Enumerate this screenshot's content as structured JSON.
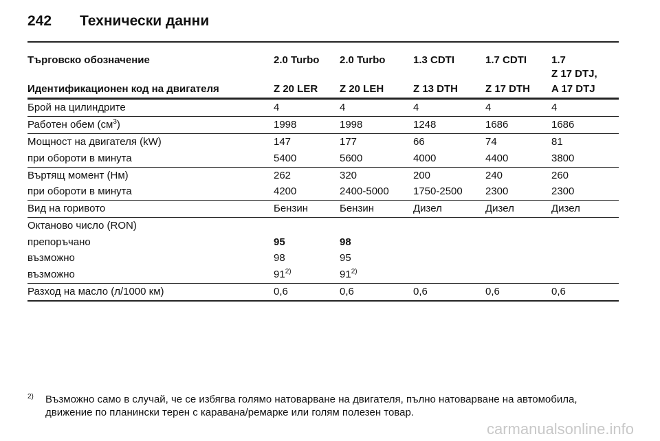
{
  "header": {
    "page_number": "242",
    "title": "Технически данни"
  },
  "table": {
    "trade_label": "Търговско обозначение",
    "trade_names": [
      "2.0 Turbo",
      "2.0 Turbo",
      "1.3 CDTI",
      "1.7 CDTI",
      "1.7"
    ],
    "code_label": "Идентификационен код на двигателя",
    "codes": [
      [
        "Z 20 LER"
      ],
      [
        "Z 20 LEH"
      ],
      [
        "Z 13 DTH"
      ],
      [
        "Z 17 DTH"
      ],
      [
        "Z 17 DTJ,",
        "A 17 DTJ"
      ]
    ],
    "groups": [
      {
        "lines": [
          {
            "label": "Брой на цилиндрите",
            "values": [
              "4",
              "4",
              "4",
              "4",
              "4"
            ]
          }
        ]
      },
      {
        "lines": [
          {
            "label": {
              "text": "Работен обем (см",
              "sup": "3",
              "tail": ")"
            },
            "values": [
              "1998",
              "1998",
              "1248",
              "1686",
              "1686"
            ]
          }
        ]
      },
      {
        "lines": [
          {
            "label": "Мощност на двигателя (kW)",
            "values": [
              "147",
              "177",
              "66",
              "74",
              "81"
            ]
          },
          {
            "label": "при обороти в минута",
            "values": [
              "5400",
              "5600",
              "4000",
              "4400",
              "3800"
            ]
          }
        ]
      },
      {
        "lines": [
          {
            "label": "Въртящ момент (Нм)",
            "values": [
              "262",
              "320",
              "200",
              "240",
              "260"
            ]
          },
          {
            "label": "при обороти в минута",
            "values": [
              "4200",
              "2400-5000",
              "1750-2500",
              "2300",
              "2300"
            ]
          }
        ]
      },
      {
        "lines": [
          {
            "label": "Вид на горивото",
            "values": [
              "Бензин",
              "Бензин",
              "Дизел",
              "Дизел",
              "Дизел"
            ]
          }
        ]
      },
      {
        "lines": [
          {
            "label": "Октаново число (RON)",
            "values": []
          },
          {
            "label": "препоръчано",
            "values": [
              "95",
              "98"
            ],
            "bold": true
          },
          {
            "label": "възможно",
            "values": [
              "98",
              "95"
            ]
          },
          {
            "label": "възможно",
            "values": [
              {
                "text": "91",
                "sup": "2)"
              },
              {
                "text": "91",
                "sup": "2)"
              }
            ]
          }
        ]
      },
      {
        "lines": [
          {
            "label": "Разход на масло (л/1000 км)",
            "values": [
              "0,6",
              "0,6",
              "0,6",
              "0,6",
              "0,6"
            ]
          }
        ]
      }
    ]
  },
  "footnote": {
    "mark": "2)",
    "lines": [
      "Възможно само в случай, че се избягва голямо натоварване на двигателя, пълно натоварване на автомобила,",
      "движение по планински терен с каравана/ремарке или голям полезен товар."
    ]
  },
  "watermark": "carmanualsonline.info"
}
